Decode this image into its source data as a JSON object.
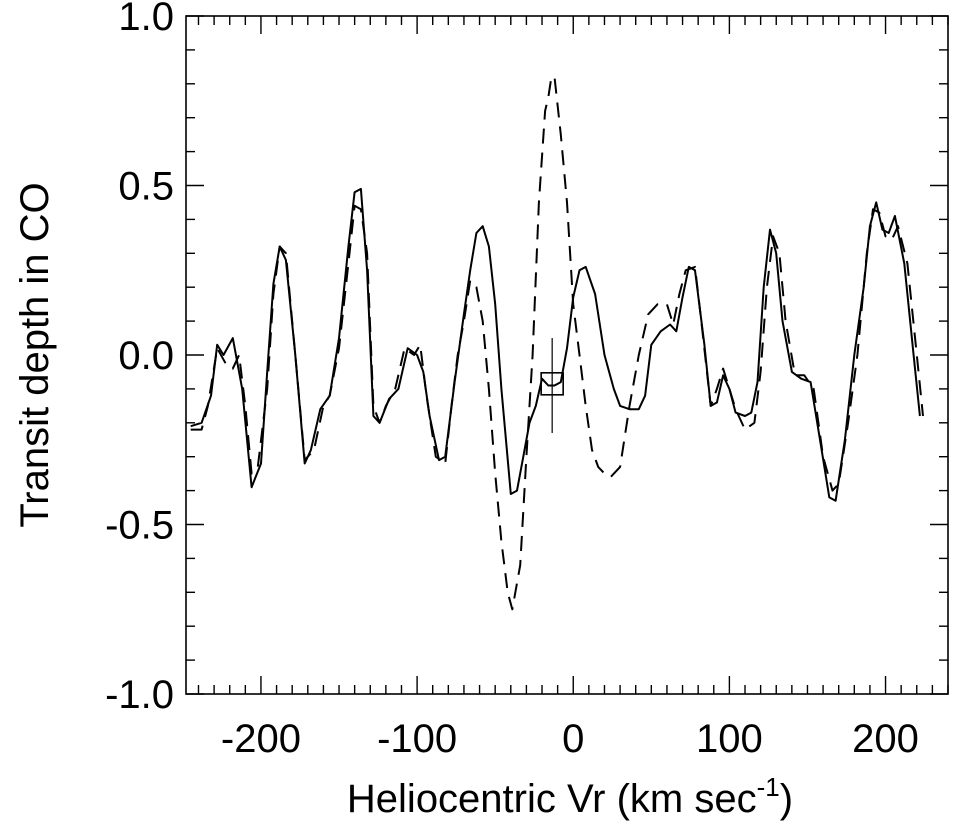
{
  "chart_data": {
    "type": "line",
    "title": "",
    "xlabel": {
      "main": "Heliocentric Vr (km sec",
      "sup": "-1",
      "tail": ")"
    },
    "ylabel": "Transit depth in CO",
    "xlim": [
      -248,
      240
    ],
    "ylim": [
      -1.0,
      1.0
    ],
    "x_ticks": [
      {
        "value": -200,
        "label": "-200"
      },
      {
        "value": -100,
        "label": "-100"
      },
      {
        "value": 0,
        "label": "0"
      },
      {
        "value": 100,
        "label": "100"
      },
      {
        "value": 200,
        "label": "200"
      }
    ],
    "y_ticks": [
      {
        "value": 1.0,
        "label": "1.0"
      },
      {
        "value": 0.5,
        "label": "0.5"
      },
      {
        "value": 0.0,
        "label": "0.0"
      },
      {
        "value": -0.5,
        "label": "-0.5"
      },
      {
        "value": -1.0,
        "label": "-1.0"
      }
    ],
    "grid": false,
    "series": [
      {
        "style": "solid",
        "points": [
          [
            -245,
            -0.21
          ],
          [
            -238,
            -0.2
          ],
          [
            -232,
            -0.12
          ],
          [
            -228,
            0.03
          ],
          [
            -224,
            0.0
          ],
          [
            -218,
            0.05
          ],
          [
            -212,
            -0.1
          ],
          [
            -206,
            -0.39
          ],
          [
            -200,
            -0.32
          ],
          [
            -196,
            -0.05
          ],
          [
            -192,
            0.21
          ],
          [
            -188,
            0.32
          ],
          [
            -184,
            0.28
          ],
          [
            -178,
            0.0
          ],
          [
            -172,
            -0.32
          ],
          [
            -168,
            -0.28
          ],
          [
            -162,
            -0.16
          ],
          [
            -156,
            -0.12
          ],
          [
            -150,
            0.05
          ],
          [
            -144,
            0.32
          ],
          [
            -140,
            0.48
          ],
          [
            -136,
            0.49
          ],
          [
            -132,
            0.25
          ],
          [
            -128,
            -0.18
          ],
          [
            -124,
            -0.2
          ],
          [
            -118,
            -0.13
          ],
          [
            -112,
            -0.1
          ],
          [
            -106,
            0.02
          ],
          [
            -100,
            0.0
          ],
          [
            -96,
            -0.05
          ],
          [
            -92,
            -0.18
          ],
          [
            -86,
            -0.31
          ],
          [
            -82,
            -0.3
          ],
          [
            -76,
            -0.08
          ],
          [
            -70,
            0.12
          ],
          [
            -66,
            0.25
          ],
          [
            -62,
            0.36
          ],
          [
            -58,
            0.38
          ],
          [
            -54,
            0.32
          ],
          [
            -50,
            0.15
          ],
          [
            -46,
            -0.1
          ],
          [
            -40,
            -0.41
          ],
          [
            -36,
            -0.4
          ],
          [
            -32,
            -0.3
          ],
          [
            -28,
            -0.2
          ],
          [
            -24,
            -0.15
          ],
          [
            -20,
            -0.07
          ],
          [
            -16,
            -0.09
          ],
          [
            -12,
            -0.09
          ],
          [
            -8,
            -0.08
          ],
          [
            -4,
            0.02
          ],
          [
            0,
            0.17
          ],
          [
            4,
            0.25
          ],
          [
            8,
            0.26
          ],
          [
            14,
            0.18
          ],
          [
            20,
            0.0
          ],
          [
            26,
            -0.1
          ],
          [
            30,
            -0.15
          ],
          [
            36,
            -0.16
          ],
          [
            42,
            -0.16
          ],
          [
            46,
            -0.12
          ],
          [
            50,
            0.03
          ],
          [
            56,
            0.07
          ],
          [
            62,
            0.09
          ],
          [
            66,
            0.07
          ],
          [
            70,
            0.17
          ],
          [
            74,
            0.26
          ],
          [
            78,
            0.25
          ],
          [
            84,
            0.03
          ],
          [
            88,
            -0.15
          ],
          [
            92,
            -0.14
          ],
          [
            96,
            -0.06
          ],
          [
            100,
            -0.1
          ],
          [
            104,
            -0.17
          ],
          [
            110,
            -0.18
          ],
          [
            114,
            -0.17
          ],
          [
            118,
            -0.08
          ],
          [
            122,
            0.2
          ],
          [
            126,
            0.37
          ],
          [
            130,
            0.3
          ],
          [
            134,
            0.1
          ],
          [
            140,
            -0.05
          ],
          [
            146,
            -0.07
          ],
          [
            152,
            -0.08
          ],
          [
            158,
            -0.25
          ],
          [
            164,
            -0.42
          ],
          [
            168,
            -0.43
          ],
          [
            174,
            -0.25
          ],
          [
            180,
            0.0
          ],
          [
            186,
            0.2
          ],
          [
            190,
            0.38
          ],
          [
            194,
            0.45
          ],
          [
            198,
            0.37
          ],
          [
            202,
            0.36
          ],
          [
            206,
            0.41
          ],
          [
            212,
            0.27
          ],
          [
            218,
            0.0
          ],
          [
            222,
            -0.18
          ]
        ]
      },
      {
        "style": "dashed",
        "points": [
          [
            -245,
            -0.22
          ],
          [
            -238,
            -0.22
          ],
          [
            -234,
            -0.15
          ],
          [
            -228,
            0.02
          ],
          [
            -222,
            -0.03
          ],
          [
            -218,
            -0.04
          ],
          [
            -214,
            0.0
          ],
          [
            -210,
            -0.15
          ],
          [
            -206,
            -0.35
          ],
          [
            -202,
            -0.33
          ],
          [
            -196,
            -0.1
          ],
          [
            -192,
            0.18
          ],
          [
            -188,
            0.32
          ],
          [
            -184,
            0.3
          ],
          [
            -178,
            0.0
          ],
          [
            -172,
            -0.31
          ],
          [
            -166,
            -0.28
          ],
          [
            -160,
            -0.15
          ],
          [
            -156,
            -0.12
          ],
          [
            -150,
            0.02
          ],
          [
            -144,
            0.27
          ],
          [
            -140,
            0.44
          ],
          [
            -136,
            0.43
          ],
          [
            -132,
            0.3
          ],
          [
            -128,
            -0.15
          ],
          [
            -124,
            -0.2
          ],
          [
            -120,
            -0.15
          ],
          [
            -114,
            -0.1
          ],
          [
            -108,
            0.02
          ],
          [
            -102,
            0.0
          ],
          [
            -98,
            0.03
          ],
          [
            -94,
            -0.12
          ],
          [
            -88,
            -0.3
          ],
          [
            -82,
            -0.32
          ],
          [
            -78,
            -0.15
          ],
          [
            -74,
            0.0
          ],
          [
            -70,
            0.1
          ],
          [
            -66,
            0.22
          ],
          [
            -62,
            0.2
          ],
          [
            -58,
            0.1
          ],
          [
            -54,
            -0.1
          ],
          [
            -50,
            -0.35
          ],
          [
            -46,
            -0.55
          ],
          [
            -42,
            -0.7
          ],
          [
            -39,
            -0.75
          ],
          [
            -34,
            -0.62
          ],
          [
            -30,
            -0.3
          ],
          [
            -26,
            0.0
          ],
          [
            -22,
            0.45
          ],
          [
            -18,
            0.72
          ],
          [
            -16,
            0.76
          ],
          [
            -14,
            0.82
          ],
          [
            -12,
            0.82
          ],
          [
            -8,
            0.65
          ],
          [
            -4,
            0.45
          ],
          [
            0,
            0.15
          ],
          [
            4,
            0.0
          ],
          [
            8,
            -0.15
          ],
          [
            12,
            -0.28
          ],
          [
            16,
            -0.33
          ],
          [
            20,
            -0.35
          ],
          [
            24,
            -0.36
          ],
          [
            30,
            -0.33
          ],
          [
            36,
            -0.15
          ],
          [
            42,
            0.0
          ],
          [
            48,
            0.12
          ],
          [
            54,
            0.15
          ],
          [
            60,
            0.15
          ],
          [
            64,
            0.09
          ],
          [
            68,
            0.18
          ],
          [
            72,
            0.25
          ],
          [
            78,
            0.26
          ],
          [
            82,
            0.1
          ],
          [
            88,
            -0.15
          ],
          [
            92,
            -0.1
          ],
          [
            96,
            -0.04
          ],
          [
            100,
            -0.1
          ],
          [
            104,
            -0.16
          ],
          [
            110,
            -0.22
          ],
          [
            116,
            -0.2
          ],
          [
            120,
            -0.05
          ],
          [
            124,
            0.2
          ],
          [
            128,
            0.35
          ],
          [
            132,
            0.3
          ],
          [
            136,
            0.1
          ],
          [
            142,
            -0.06
          ],
          [
            148,
            -0.06
          ],
          [
            154,
            -0.1
          ],
          [
            160,
            -0.3
          ],
          [
            166,
            -0.4
          ],
          [
            170,
            -0.38
          ],
          [
            176,
            -0.2
          ],
          [
            182,
            0.0
          ],
          [
            188,
            0.3
          ],
          [
            192,
            0.43
          ],
          [
            196,
            0.42
          ],
          [
            200,
            0.35
          ],
          [
            204,
            0.34
          ],
          [
            208,
            0.38
          ],
          [
            214,
            0.27
          ],
          [
            220,
            0.0
          ],
          [
            224,
            -0.18
          ]
        ]
      }
    ],
    "marker": {
      "shape": "square",
      "x": -13.5,
      "y": -0.085,
      "error_y": [
        -0.23,
        0.05
      ]
    }
  }
}
